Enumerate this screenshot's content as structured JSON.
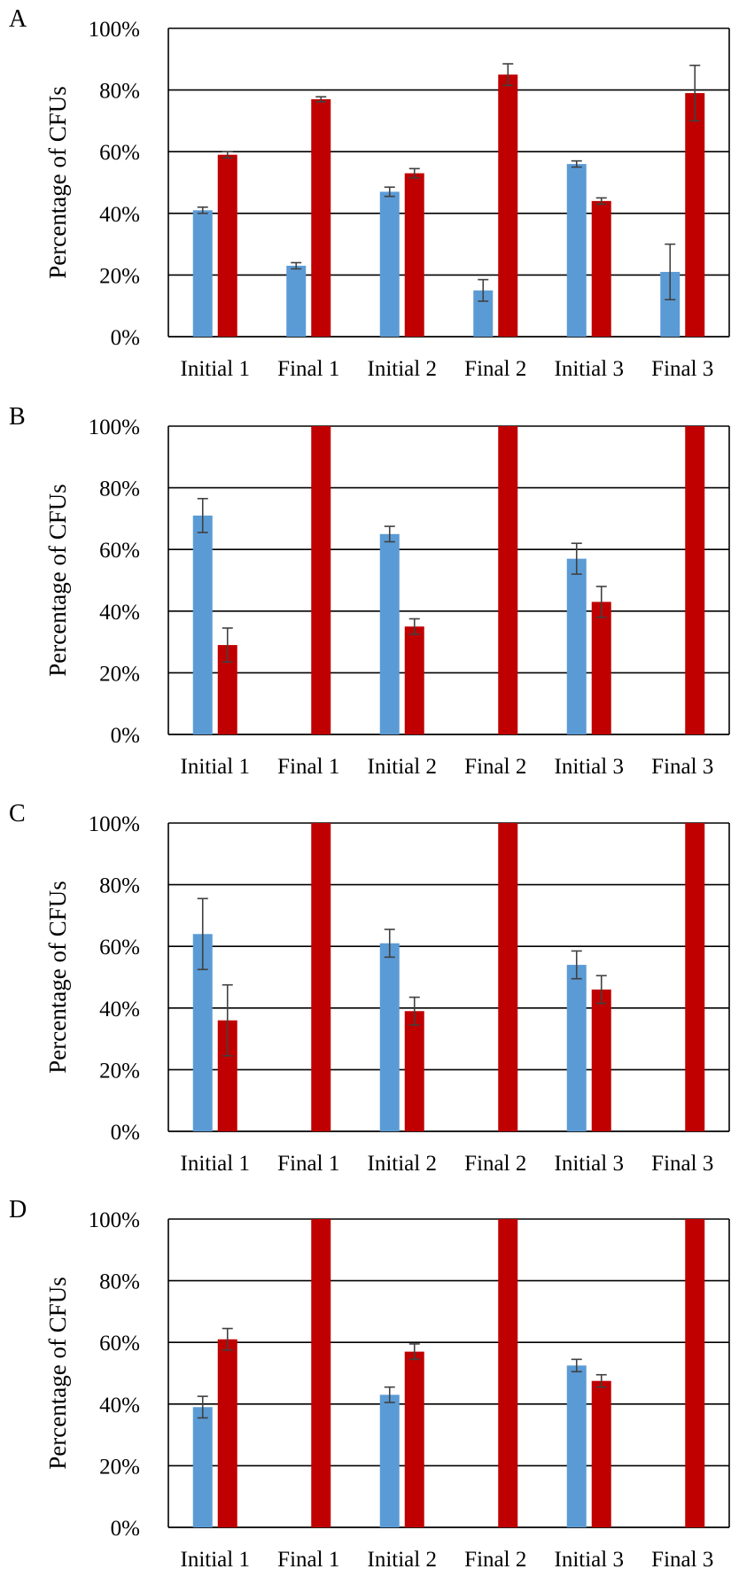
{
  "colors": {
    "series1": "#5b9bd5",
    "series2": "#c00000",
    "grid": "#000000",
    "error": "#404040"
  },
  "chart_data": [
    {
      "type": "bar",
      "panel": "A",
      "ylabel": "Percentage of CFUs",
      "yticks": [
        "0%",
        "20%",
        "40%",
        "60%",
        "80%",
        "100%"
      ],
      "ylim": [
        0,
        100
      ],
      "grid": true,
      "categories": [
        "Initial 1",
        "Final 1",
        "Initial 2",
        "Final 2",
        "Initial 3",
        "Final 3"
      ],
      "series": [
        {
          "values": [
            41,
            23,
            47,
            15,
            56,
            21
          ],
          "errors": [
            1,
            1,
            1.5,
            3.5,
            1,
            9
          ]
        },
        {
          "values": [
            59,
            77,
            53,
            85,
            44,
            79
          ],
          "errors": [
            1,
            0.8,
            1.5,
            3.5,
            1,
            9
          ]
        }
      ]
    },
    {
      "type": "bar",
      "panel": "B",
      "ylabel": "Percentage of CFUs",
      "yticks": [
        "0%",
        "20%",
        "40%",
        "60%",
        "80%",
        "100%"
      ],
      "ylim": [
        0,
        100
      ],
      "grid": true,
      "categories": [
        "Initial 1",
        "Final 1",
        "Initial 2",
        "Final 2",
        "Initial 3",
        "Final 3"
      ],
      "series": [
        {
          "values": [
            71,
            0,
            65,
            0,
            57,
            0
          ],
          "errors": [
            5.5,
            0,
            2.5,
            0,
            5,
            0
          ]
        },
        {
          "values": [
            29,
            100,
            35,
            100,
            43,
            100
          ],
          "errors": [
            5.5,
            0,
            2.5,
            0,
            5,
            0
          ]
        }
      ]
    },
    {
      "type": "bar",
      "panel": "C",
      "ylabel": "Percentage of CFUs",
      "yticks": [
        "0%",
        "20%",
        "40%",
        "60%",
        "80%",
        "100%"
      ],
      "ylim": [
        0,
        100
      ],
      "grid": true,
      "categories": [
        "Initial 1",
        "Final 1",
        "Initial 2",
        "Final 2",
        "Initial 3",
        "Final 3"
      ],
      "series": [
        {
          "values": [
            64,
            0,
            61,
            0,
            54,
            0
          ],
          "errors": [
            11.5,
            0,
            4.5,
            0,
            4.5,
            0
          ]
        },
        {
          "values": [
            36,
            100,
            39,
            100,
            46,
            100
          ],
          "errors": [
            11.5,
            0,
            4.5,
            0,
            4.5,
            0
          ]
        }
      ]
    },
    {
      "type": "bar",
      "panel": "D",
      "ylabel": "Percentage of CFUs",
      "yticks": [
        "0%",
        "20%",
        "40%",
        "60%",
        "80%",
        "100%"
      ],
      "ylim": [
        0,
        100
      ],
      "grid": true,
      "categories": [
        "Initial 1",
        "Final 1",
        "Initial 2",
        "Final 2",
        "Initial 3",
        "Final 3"
      ],
      "series": [
        {
          "values": [
            39,
            0,
            43,
            0,
            52.5,
            0
          ],
          "errors": [
            3.5,
            0,
            2.5,
            0,
            2,
            0
          ]
        },
        {
          "values": [
            61,
            100,
            57,
            100,
            47.5,
            100
          ],
          "errors": [
            3.5,
            0,
            2.5,
            0,
            2,
            0
          ]
        }
      ]
    }
  ]
}
